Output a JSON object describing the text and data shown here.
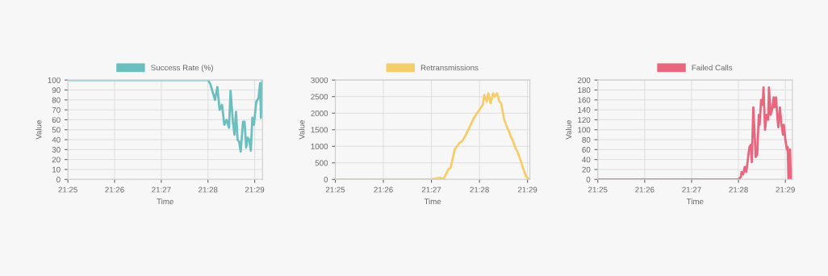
{
  "chart_data": [
    {
      "type": "line",
      "xlabel": "Time",
      "ylabel": "Value",
      "legend": "top",
      "grid": true,
      "marker": "none",
      "line_style": "solid",
      "xlim": [
        21.41667,
        21.48611
      ],
      "xticks": [
        {
          "value": 21.41667,
          "label": "21:25"
        },
        {
          "value": 21.43333,
          "label": "21:26"
        },
        {
          "value": 21.45,
          "label": "21:27"
        },
        {
          "value": 21.46667,
          "label": "21:28"
        },
        {
          "value": 21.48333,
          "label": "21:29"
        }
      ],
      "ylim": [
        0,
        100
      ],
      "yticks": [
        0,
        10,
        20,
        30,
        40,
        50,
        60,
        70,
        80,
        90,
        100
      ],
      "series": [
        {
          "name": "Success Rate (%)",
          "color": "#6bbfbf",
          "x": [
            21.41667,
            21.46667,
            21.4675,
            21.46833,
            21.46917,
            21.47,
            21.47083,
            21.47167,
            21.4725,
            21.47333,
            21.47417,
            21.47472,
            21.47556,
            21.47611,
            21.47667,
            21.47722,
            21.47778,
            21.47833,
            21.47917,
            21.47972,
            21.48028,
            21.48083,
            21.48139,
            21.48194,
            21.4825,
            21.48306,
            21.48389,
            21.48472,
            21.48528,
            21.48556,
            21.48611
          ],
          "values": [
            100,
            100,
            96,
            88,
            80,
            93,
            70,
            75,
            55,
            60,
            52,
            89,
            58,
            45,
            68,
            40,
            38,
            28,
            58,
            58,
            32,
            42,
            40,
            29,
            62,
            55,
            78,
            82,
            97,
            62,
            100
          ]
        }
      ]
    },
    {
      "type": "line",
      "xlabel": "Time",
      "ylabel": "Value",
      "legend": "top",
      "grid": true,
      "marker": "none",
      "line_style": "solid",
      "xlim": [
        21.41667,
        21.48417
      ],
      "xticks": [
        {
          "value": 21.41667,
          "label": "21:25"
        },
        {
          "value": 21.43333,
          "label": "21:26"
        },
        {
          "value": 21.45,
          "label": "21:27"
        },
        {
          "value": 21.46667,
          "label": "21:28"
        },
        {
          "value": 21.48333,
          "label": "21:29"
        }
      ],
      "ylim": [
        0,
        3000
      ],
      "yticks": [
        0,
        500,
        1000,
        1500,
        2000,
        2500,
        3000
      ],
      "series": [
        {
          "name": "Retransmissions",
          "color": "#f5cd6a",
          "x": [
            21.41667,
            21.45,
            21.45167,
            21.45306,
            21.45417,
            21.45583,
            21.45667,
            21.45806,
            21.45889,
            21.45972,
            21.46056,
            21.46139,
            21.4625,
            21.46361,
            21.46472,
            21.46583,
            21.46667,
            21.46778,
            21.46833,
            21.46917,
            21.46972,
            21.47056,
            21.47139,
            21.47194,
            21.47278,
            21.47361,
            21.47417,
            21.47528,
            21.47611,
            21.47694,
            21.4775,
            21.47833,
            21.47889,
            21.48,
            21.48083,
            21.48194,
            21.48278,
            21.48389
          ],
          "values": [
            0,
            0,
            30,
            50,
            0,
            300,
            350,
            900,
            1000,
            1100,
            1150,
            1250,
            1450,
            1650,
            1850,
            2000,
            2100,
            2250,
            2550,
            2350,
            2600,
            2300,
            2600,
            2500,
            2600,
            2350,
            2300,
            1800,
            1600,
            1450,
            1300,
            1150,
            1000,
            800,
            600,
            300,
            100,
            0
          ]
        }
      ]
    },
    {
      "type": "line",
      "xlabel": "Time",
      "ylabel": "Value",
      "legend": "top",
      "grid": true,
      "marker": "none",
      "line_style": "solid",
      "xlim": [
        21.41667,
        21.48583
      ],
      "xticks": [
        {
          "value": 21.41667,
          "label": "21:25"
        },
        {
          "value": 21.43333,
          "label": "21:26"
        },
        {
          "value": 21.45,
          "label": "21:27"
        },
        {
          "value": 21.46667,
          "label": "21:28"
        },
        {
          "value": 21.48333,
          "label": "21:29"
        }
      ],
      "ylim": [
        0,
        200
      ],
      "yticks": [
        0,
        20,
        40,
        60,
        80,
        100,
        120,
        140,
        160,
        180,
        200
      ],
      "series": [
        {
          "name": "Failed Calls",
          "color": "#e8677f",
          "x": [
            21.41667,
            21.46667,
            21.4675,
            21.46778,
            21.46833,
            21.46889,
            21.46944,
            21.47,
            21.47056,
            21.47111,
            21.47139,
            21.47194,
            21.4725,
            21.47278,
            21.47333,
            21.47389,
            21.47417,
            21.47472,
            21.47528,
            21.47556,
            21.47611,
            21.47667,
            21.47722,
            21.4775,
            21.47806,
            21.47861,
            21.47917,
            21.47944,
            21.48,
            21.48056,
            21.48083,
            21.48139,
            21.48194,
            21.4825,
            21.48278,
            21.48333,
            21.48389,
            21.48417,
            21.48444,
            21.485,
            21.48528
          ],
          "values": [
            0,
            0,
            5,
            15,
            10,
            25,
            15,
            40,
            65,
            70,
            35,
            145,
            80,
            45,
            50,
            130,
            110,
            160,
            150,
            185,
            100,
            130,
            120,
            185,
            130,
            140,
            165,
            145,
            165,
            120,
            105,
            145,
            110,
            90,
            110,
            80,
            60,
            65,
            0,
            60,
            0
          ]
        }
      ]
    }
  ]
}
